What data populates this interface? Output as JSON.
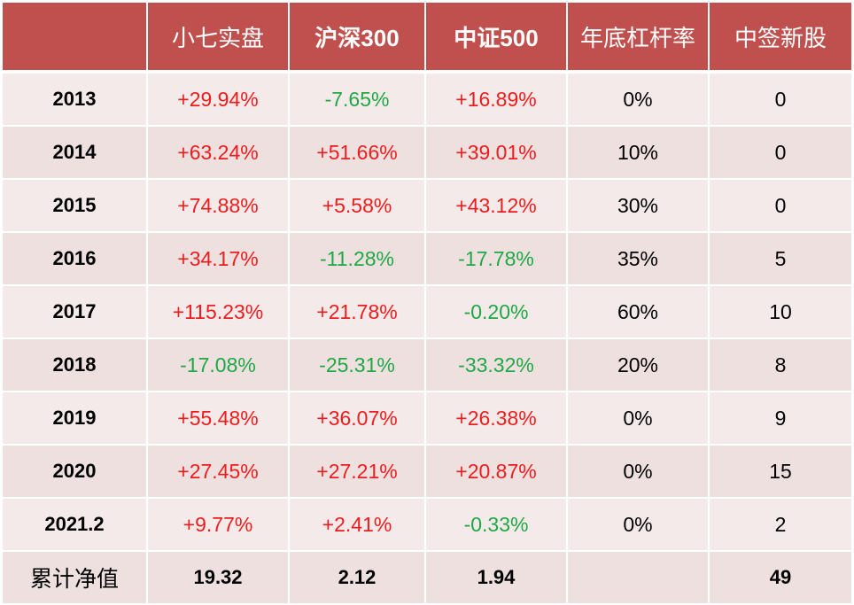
{
  "header": [
    "",
    "小七实盘",
    "沪深300",
    "中证500",
    "年底杠杆率",
    "中签新股"
  ],
  "rows": [
    {
      "year": "2013",
      "cells": [
        {
          "v": "+29.94%",
          "c": "pos"
        },
        {
          "v": "-7.65%",
          "c": "neg"
        },
        {
          "v": "+16.89%",
          "c": "pos"
        },
        {
          "v": "0%",
          "c": ""
        },
        {
          "v": "0",
          "c": ""
        }
      ]
    },
    {
      "year": "2014",
      "cells": [
        {
          "v": "+63.24%",
          "c": "pos"
        },
        {
          "v": "+51.66%",
          "c": "pos"
        },
        {
          "v": "+39.01%",
          "c": "pos"
        },
        {
          "v": "10%",
          "c": ""
        },
        {
          "v": "0",
          "c": ""
        }
      ]
    },
    {
      "year": "2015",
      "cells": [
        {
          "v": "+74.88%",
          "c": "pos"
        },
        {
          "v": "+5.58%",
          "c": "pos"
        },
        {
          "v": "+43.12%",
          "c": "pos"
        },
        {
          "v": "30%",
          "c": ""
        },
        {
          "v": "0",
          "c": ""
        }
      ]
    },
    {
      "year": "2016",
      "cells": [
        {
          "v": "+34.17%",
          "c": "pos"
        },
        {
          "v": "-11.28%",
          "c": "neg"
        },
        {
          "v": "-17.78%",
          "c": "neg"
        },
        {
          "v": "35%",
          "c": ""
        },
        {
          "v": "5",
          "c": ""
        }
      ]
    },
    {
      "year": "2017",
      "cells": [
        {
          "v": "+115.23%",
          "c": "pos"
        },
        {
          "v": "+21.78%",
          "c": "pos"
        },
        {
          "v": "-0.20%",
          "c": "neg"
        },
        {
          "v": "60%",
          "c": ""
        },
        {
          "v": "10",
          "c": ""
        }
      ]
    },
    {
      "year": "2018",
      "cells": [
        {
          "v": "-17.08%",
          "c": "neg"
        },
        {
          "v": "-25.31%",
          "c": "neg"
        },
        {
          "v": "-33.32%",
          "c": "neg"
        },
        {
          "v": "20%",
          "c": ""
        },
        {
          "v": "8",
          "c": ""
        }
      ]
    },
    {
      "year": "2019",
      "cells": [
        {
          "v": "+55.48%",
          "c": "pos"
        },
        {
          "v": "+36.07%",
          "c": "pos"
        },
        {
          "v": "+26.38%",
          "c": "pos"
        },
        {
          "v": "0%",
          "c": ""
        },
        {
          "v": "9",
          "c": ""
        }
      ]
    },
    {
      "year": "2020",
      "cells": [
        {
          "v": "+27.45%",
          "c": "pos"
        },
        {
          "v": "+27.21%",
          "c": "pos"
        },
        {
          "v": "+20.87%",
          "c": "pos"
        },
        {
          "v": "0%",
          "c": ""
        },
        {
          "v": "15",
          "c": ""
        }
      ]
    },
    {
      "year": "2021.2",
      "cells": [
        {
          "v": "+9.77%",
          "c": "pos"
        },
        {
          "v": "+2.41%",
          "c": "pos"
        },
        {
          "v": "-0.33%",
          "c": "neg"
        },
        {
          "v": "0%",
          "c": ""
        },
        {
          "v": "2",
          "c": ""
        }
      ]
    }
  ],
  "total": {
    "label": "累计净值",
    "cells": [
      "19.32",
      "2.12",
      "1.94",
      "",
      "49"
    ]
  },
  "colors": {
    "header_bg": "#c0504d",
    "positive": "#ee1c1c",
    "negative": "#1fa844",
    "row_bg": "#f2e6e6"
  }
}
